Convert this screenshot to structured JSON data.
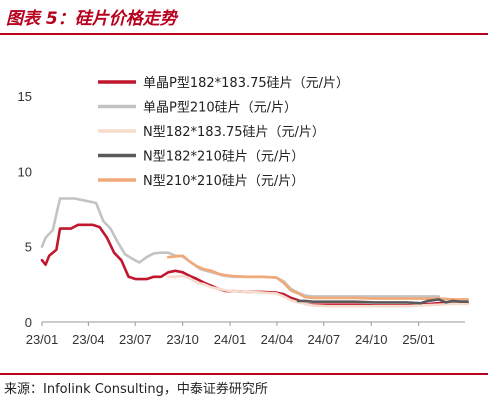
{
  "header": {
    "title": "图表 5：硅片价格走势"
  },
  "footer": {
    "source": "来源：Infolink Consulting，中泰证券研究所"
  },
  "colors": {
    "accent": "#b8001f",
    "series": [
      "#c0172f",
      "#c3c3c3",
      "#f6dccc",
      "#5a5a5a",
      "#f2a979"
    ]
  },
  "chart_data": {
    "type": "line",
    "title": "",
    "xlabel": "",
    "ylabel": "",
    "ylim": [
      0,
      15
    ],
    "yticks": [
      0,
      5,
      10,
      15
    ],
    "xlim": [
      "2023-01",
      "2025-04"
    ],
    "xticks": [
      "23/01",
      "23/04",
      "23/07",
      "23/10",
      "24/01",
      "24/04",
      "24/07",
      "24/10",
      "25/01"
    ],
    "grid": false,
    "legend_position": "top-center",
    "series": [
      {
        "name": "单晶P型182*183.75硅片（元/片）",
        "points": [
          [
            "2023-01-01",
            4.1
          ],
          [
            "2023-01-08",
            3.8
          ],
          [
            "2023-01-15",
            4.4
          ],
          [
            "2023-01-29",
            4.8
          ],
          [
            "2023-02-05",
            6.2
          ],
          [
            "2023-02-26",
            6.2
          ],
          [
            "2023-03-12",
            6.45
          ],
          [
            "2023-04-09",
            6.45
          ],
          [
            "2023-04-23",
            6.3
          ],
          [
            "2023-05-07",
            5.6
          ],
          [
            "2023-05-21",
            4.6
          ],
          [
            "2023-06-04",
            4.1
          ],
          [
            "2023-06-18",
            3.0
          ],
          [
            "2023-07-02",
            2.85
          ],
          [
            "2023-07-23",
            2.85
          ],
          [
            "2023-08-06",
            3.0
          ],
          [
            "2023-08-20",
            3.0
          ],
          [
            "2023-09-03",
            3.3
          ],
          [
            "2023-09-17",
            3.4
          ],
          [
            "2023-10-01",
            3.3
          ],
          [
            "2023-10-15",
            3.05
          ],
          [
            "2023-10-29",
            2.85
          ],
          [
            "2023-11-12",
            2.6
          ],
          [
            "2023-11-26",
            2.4
          ],
          [
            "2023-12-10",
            2.2
          ],
          [
            "2023-12-24",
            2.05
          ],
          [
            "2024-01-07",
            2.05
          ],
          [
            "2024-02-04",
            2.0
          ],
          [
            "2024-03-03",
            2.0
          ],
          [
            "2024-03-31",
            1.95
          ],
          [
            "2024-04-14",
            1.85
          ],
          [
            "2024-04-28",
            1.6
          ],
          [
            "2024-05-12",
            1.45
          ],
          [
            "2024-05-26",
            1.2
          ],
          [
            "2024-06-09",
            1.15
          ],
          [
            "2024-07-07",
            1.15
          ],
          [
            "2024-08-04",
            1.15
          ],
          [
            "2024-09-01",
            1.15
          ],
          [
            "2024-10-06",
            1.1
          ],
          [
            "2024-11-03",
            1.1
          ],
          [
            "2024-12-08",
            1.1
          ],
          [
            "2025-01-05",
            1.15
          ],
          [
            "2025-02-09",
            1.25
          ],
          [
            "2025-03-09",
            1.25
          ],
          [
            "2025-04-06",
            1.25
          ]
        ]
      },
      {
        "name": "单晶P型210硅片（元/片）",
        "points": [
          [
            "2023-01-01",
            5.0
          ],
          [
            "2023-01-08",
            5.6
          ],
          [
            "2023-01-22",
            6.1
          ],
          [
            "2023-02-05",
            8.2
          ],
          [
            "2023-03-05",
            8.2
          ],
          [
            "2023-03-26",
            8.05
          ],
          [
            "2023-04-16",
            7.9
          ],
          [
            "2023-04-30",
            6.7
          ],
          [
            "2023-05-14",
            6.2
          ],
          [
            "2023-05-28",
            5.3
          ],
          [
            "2023-06-11",
            4.5
          ],
          [
            "2023-06-25",
            4.2
          ],
          [
            "2023-07-09",
            3.95
          ],
          [
            "2023-07-23",
            4.3
          ],
          [
            "2023-08-06",
            4.55
          ],
          [
            "2023-08-20",
            4.6
          ],
          [
            "2023-09-03",
            4.6
          ],
          [
            "2023-09-17",
            4.4
          ],
          [
            "2023-10-01",
            4.35
          ],
          [
            "2023-10-15",
            4.0
          ],
          [
            "2023-11-05",
            3.5
          ],
          [
            "2023-11-26",
            3.3
          ],
          [
            "2023-12-17",
            3.1
          ],
          [
            "2024-01-07",
            3.0
          ],
          [
            "2024-02-04",
            3.0
          ],
          [
            "2024-03-03",
            3.0
          ],
          [
            "2024-03-31",
            2.95
          ],
          [
            "2024-04-14",
            2.7
          ],
          [
            "2024-04-28",
            2.2
          ],
          [
            "2024-05-12",
            1.95
          ],
          [
            "2024-05-26",
            1.75
          ],
          [
            "2024-06-09",
            1.7
          ],
          [
            "2024-07-07",
            1.7
          ],
          [
            "2024-08-04",
            1.7
          ],
          [
            "2024-09-01",
            1.7
          ],
          [
            "2024-10-06",
            1.7
          ],
          [
            "2024-11-03",
            1.7
          ],
          [
            "2024-12-08",
            1.7
          ],
          [
            "2025-01-05",
            1.7
          ],
          [
            "2025-02-09",
            1.7
          ]
        ]
      },
      {
        "name": "N型182*183.75硅片（元/片）",
        "points": [
          [
            "2023-09-03",
            3.0
          ],
          [
            "2023-09-17",
            3.0
          ],
          [
            "2023-10-01",
            3.05
          ],
          [
            "2023-10-15",
            2.9
          ],
          [
            "2023-10-29",
            2.6
          ],
          [
            "2023-11-12",
            2.5
          ],
          [
            "2023-11-26",
            2.3
          ],
          [
            "2023-12-10",
            2.2
          ],
          [
            "2023-12-24",
            2.1
          ],
          [
            "2024-01-07",
            2.05
          ],
          [
            "2024-02-04",
            2.0
          ],
          [
            "2024-03-03",
            1.95
          ],
          [
            "2024-03-31",
            1.9
          ],
          [
            "2024-04-14",
            1.7
          ],
          [
            "2024-04-28",
            1.45
          ],
          [
            "2024-05-12",
            1.3
          ],
          [
            "2024-05-26",
            1.2
          ],
          [
            "2024-06-09",
            1.1
          ],
          [
            "2024-07-07",
            1.05
          ],
          [
            "2024-08-04",
            1.05
          ],
          [
            "2024-09-01",
            1.05
          ],
          [
            "2024-10-06",
            1.05
          ],
          [
            "2024-11-03",
            1.05
          ],
          [
            "2024-12-08",
            1.05
          ],
          [
            "2025-01-05",
            1.1
          ],
          [
            "2025-02-09",
            1.15
          ],
          [
            "2025-03-09",
            1.2
          ],
          [
            "2025-04-06",
            1.2
          ]
        ]
      },
      {
        "name": "N型182*210硅片（元/片）",
        "points": [
          [
            "2024-05-12",
            1.4
          ],
          [
            "2024-05-26",
            1.4
          ],
          [
            "2024-06-09",
            1.35
          ],
          [
            "2024-07-07",
            1.35
          ],
          [
            "2024-08-04",
            1.35
          ],
          [
            "2024-09-01",
            1.35
          ],
          [
            "2024-10-06",
            1.3
          ],
          [
            "2024-11-03",
            1.3
          ],
          [
            "2024-12-08",
            1.3
          ],
          [
            "2025-01-05",
            1.25
          ],
          [
            "2025-01-19",
            1.4
          ],
          [
            "2025-02-09",
            1.5
          ],
          [
            "2025-02-23",
            1.3
          ],
          [
            "2025-03-09",
            1.4
          ],
          [
            "2025-03-23",
            1.35
          ],
          [
            "2025-04-06",
            1.35
          ]
        ]
      },
      {
        "name": "N型210*210硅片（元/片）",
        "points": [
          [
            "2023-09-03",
            4.3
          ],
          [
            "2023-09-17",
            4.35
          ],
          [
            "2023-10-01",
            4.4
          ],
          [
            "2023-10-15",
            4.0
          ],
          [
            "2023-10-29",
            3.7
          ],
          [
            "2023-11-12",
            3.5
          ],
          [
            "2023-11-26",
            3.4
          ],
          [
            "2023-12-10",
            3.2
          ],
          [
            "2023-12-24",
            3.1
          ],
          [
            "2024-01-07",
            3.05
          ],
          [
            "2024-02-04",
            3.0
          ],
          [
            "2024-03-03",
            3.0
          ],
          [
            "2024-03-31",
            2.95
          ],
          [
            "2024-04-14",
            2.6
          ],
          [
            "2024-04-28",
            2.1
          ],
          [
            "2024-05-12",
            1.9
          ],
          [
            "2024-05-26",
            1.65
          ],
          [
            "2024-06-09",
            1.6
          ],
          [
            "2024-07-07",
            1.6
          ],
          [
            "2024-08-04",
            1.6
          ],
          [
            "2024-09-01",
            1.6
          ],
          [
            "2024-10-06",
            1.55
          ],
          [
            "2024-11-03",
            1.55
          ],
          [
            "2024-12-08",
            1.55
          ],
          [
            "2025-01-05",
            1.55
          ],
          [
            "2025-02-09",
            1.55
          ],
          [
            "2025-03-09",
            1.5
          ],
          [
            "2025-04-06",
            1.5
          ]
        ]
      }
    ]
  }
}
